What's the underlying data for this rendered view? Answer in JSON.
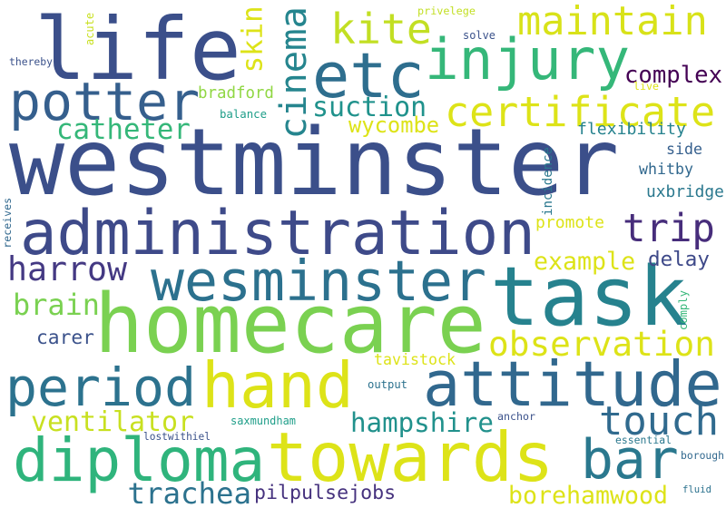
{
  "words": [
    {
      "id": "westminster",
      "text": "westminster",
      "color": "#3b4f8a"
    },
    {
      "id": "life",
      "text": "life",
      "color": "#3b4f8a"
    },
    {
      "id": "homecare",
      "text": "homecare",
      "color": "#7ad151"
    },
    {
      "id": "task",
      "text": "task",
      "color": "#26828e"
    },
    {
      "id": "administration",
      "text": "administration",
      "color": "#3e4a89"
    },
    {
      "id": "towards",
      "text": "towards",
      "color": "#dde318"
    },
    {
      "id": "hand",
      "text": "hand",
      "color": "#dde318"
    },
    {
      "id": "attitude",
      "text": "attitude",
      "color": "#31688e"
    },
    {
      "id": "diploma",
      "text": "diploma",
      "color": "#2fb47c"
    },
    {
      "id": "period",
      "text": "period",
      "color": "#2c728e"
    },
    {
      "id": "potter",
      "text": "potter",
      "color": "#355f8d"
    },
    {
      "id": "injury",
      "text": "injury",
      "color": "#35b779"
    },
    {
      "id": "etc",
      "text": "etc",
      "color": "#2e6e8e"
    },
    {
      "id": "wesminster",
      "text": "wesminster",
      "color": "#2c718e"
    },
    {
      "id": "certificate",
      "text": "certificate",
      "color": "#dde318"
    },
    {
      "id": "maintain",
      "text": "maintain",
      "color": "#d8e219"
    },
    {
      "id": "bar",
      "text": "bar",
      "color": "#2a788e"
    },
    {
      "id": "touch",
      "text": "touch",
      "color": "#306a8e"
    },
    {
      "id": "kite",
      "text": "kite",
      "color": "#c2df23"
    },
    {
      "id": "cinema",
      "text": "cinema",
      "color": "#25858e"
    },
    {
      "id": "trip",
      "text": "trip",
      "color": "#472d7b"
    },
    {
      "id": "harrow",
      "text": "harrow",
      "color": "#443983"
    },
    {
      "id": "observation",
      "text": "observation",
      "color": "#dde318"
    },
    {
      "id": "complex",
      "text": "complex",
      "color": "#440154"
    },
    {
      "id": "suction",
      "text": "suction",
      "color": "#20928c"
    },
    {
      "id": "catheter",
      "text": "catheter",
      "color": "#35b779"
    },
    {
      "id": "brain",
      "text": "brain",
      "color": "#7ad151"
    },
    {
      "id": "ventilator",
      "text": "ventilator",
      "color": "#c8e020"
    },
    {
      "id": "hampshire",
      "text": "hampshire",
      "color": "#21918c"
    },
    {
      "id": "trachea",
      "text": "trachea",
      "color": "#2c728e"
    },
    {
      "id": "borehamwood",
      "text": "borehamwood",
      "color": "#dde318"
    },
    {
      "id": "skin",
      "text": "skin",
      "color": "#dde318"
    },
    {
      "id": "example",
      "text": "example",
      "color": "#dde318"
    },
    {
      "id": "carer",
      "text": "carer",
      "color": "#3b528b"
    },
    {
      "id": "pilpulsejobs",
      "text": "pilpulsejobs",
      "color": "#46327e"
    },
    {
      "id": "wycombe",
      "text": "wycombe",
      "color": "#dde318"
    },
    {
      "id": "flexibility",
      "text": "flexibility",
      "color": "#26828e"
    },
    {
      "id": "delay",
      "text": "delay",
      "color": "#3e4989"
    },
    {
      "id": "bradford",
      "text": "bradford",
      "color": "#90d743"
    },
    {
      "id": "promote",
      "text": "promote",
      "color": "#dde318"
    },
    {
      "id": "uxbridge",
      "text": "uxbridge",
      "color": "#2a788e"
    },
    {
      "id": "whitby",
      "text": "whitby",
      "color": "#31688e"
    },
    {
      "id": "side",
      "text": "side",
      "color": "#355f8d"
    },
    {
      "id": "tavistock",
      "text": "tavistock",
      "color": "#dde318"
    },
    {
      "id": "balance",
      "text": "balance",
      "color": "#1f9e89"
    },
    {
      "id": "solve",
      "text": "solve",
      "color": "#3b528b"
    },
    {
      "id": "privelege",
      "text": "privelege",
      "color": "#c2df23"
    },
    {
      "id": "live",
      "text": "live",
      "color": "#dde318"
    },
    {
      "id": "thereby",
      "text": "thereby",
      "color": "#3b528b"
    },
    {
      "id": "acute",
      "text": "acute",
      "color": "#c8e020"
    },
    {
      "id": "incidence",
      "text": "incidence",
      "color": "#2a788e"
    },
    {
      "id": "receives",
      "text": "receives",
      "color": "#31688e"
    },
    {
      "id": "output",
      "text": "output",
      "color": "#2c728e"
    },
    {
      "id": "saxmundham",
      "text": "saxmundham",
      "color": "#1f9e89"
    },
    {
      "id": "anchor",
      "text": "anchor",
      "color": "#3b528b"
    },
    {
      "id": "lostwithiel",
      "text": "lostwithiel",
      "color": "#3b528b"
    },
    {
      "id": "essential",
      "text": "essential",
      "color": "#2a788e"
    },
    {
      "id": "borough",
      "text": "borough",
      "color": "#31688e"
    },
    {
      "id": "fluid",
      "text": "fluid",
      "color": "#2c728e"
    },
    {
      "id": "comply",
      "text": "comply",
      "color": "#35b779"
    }
  ]
}
